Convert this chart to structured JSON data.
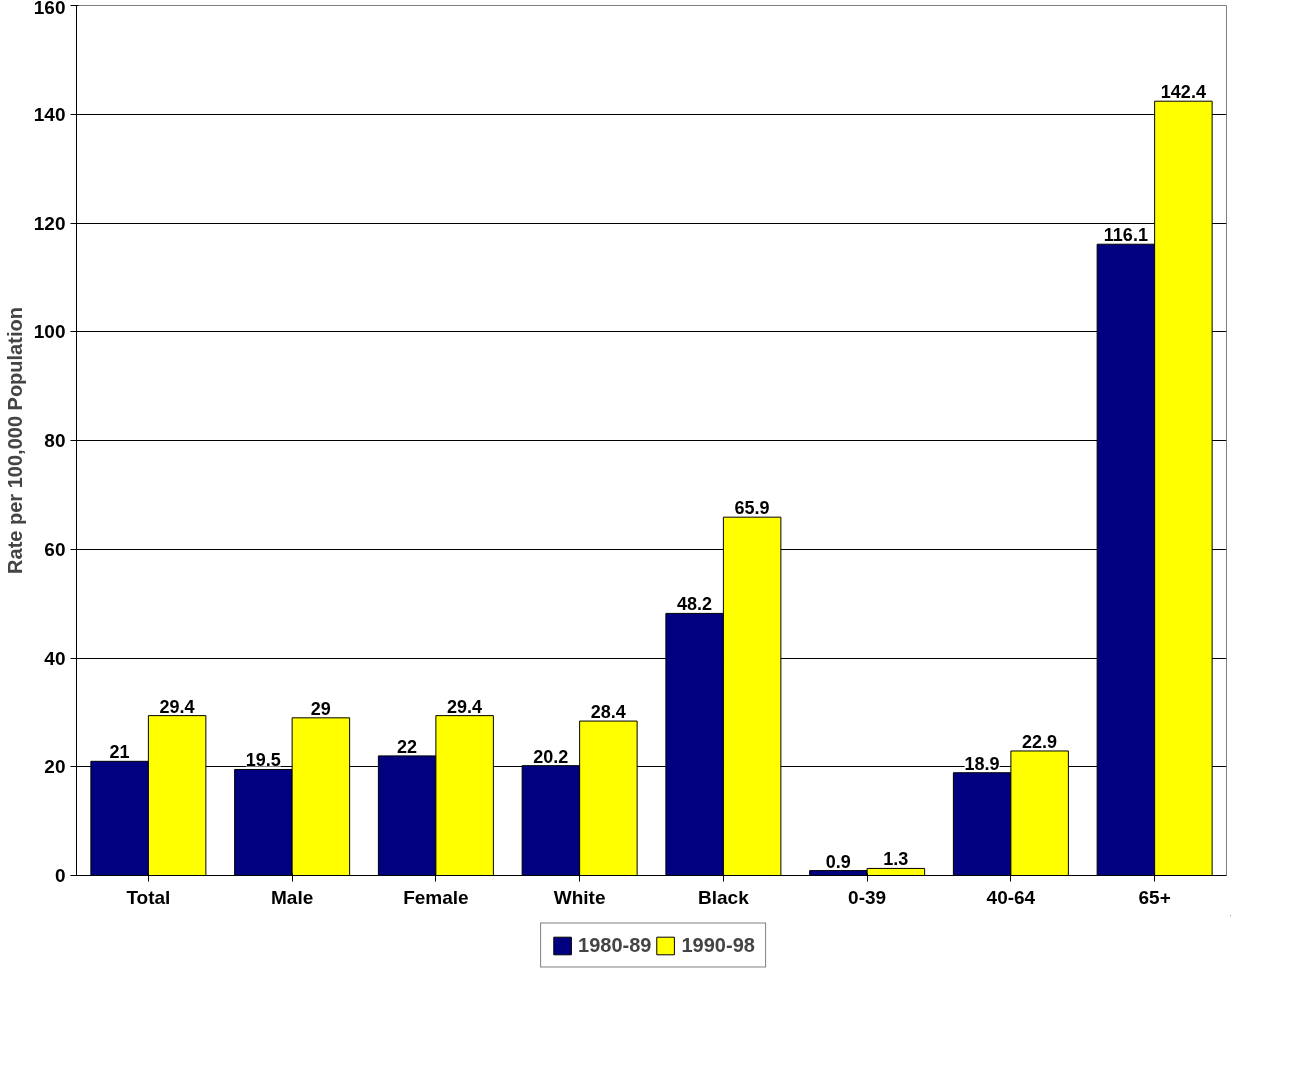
{
  "chart_data": {
    "type": "bar",
    "ylabel": "Rate per 100,000 Population",
    "categories": [
      "Total",
      "Male",
      "Female",
      "White",
      "Black",
      "0-39",
      "40-64",
      "65+"
    ],
    "series": [
      {
        "name": "1980-89",
        "color": "#000080",
        "values": [
          21,
          19.5,
          22,
          20.2,
          48.2,
          0.9,
          18.9,
          116.1
        ]
      },
      {
        "name": "1990-98",
        "color": "#ffff00",
        "values": [
          29.4,
          29,
          29.4,
          28.4,
          65.9,
          1.3,
          22.9,
          142.4
        ]
      }
    ],
    "ylim": [
      0,
      160
    ],
    "yticks": [
      0,
      20,
      40,
      60,
      80,
      100,
      120,
      140,
      160
    ],
    "grid": "y",
    "legend": "bottom",
    "data_labels": true
  }
}
